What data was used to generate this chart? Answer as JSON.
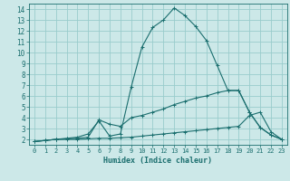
{
  "title": "",
  "xlabel": "Humidex (Indice chaleur)",
  "bg_color": "#cce8e8",
  "grid_color": "#99cccc",
  "line_color": "#1a6e6e",
  "xlim": [
    -0.5,
    23.5
  ],
  "ylim": [
    1.5,
    14.5
  ],
  "xticks": [
    0,
    1,
    2,
    3,
    4,
    5,
    6,
    7,
    8,
    9,
    10,
    11,
    12,
    13,
    14,
    15,
    16,
    17,
    18,
    19,
    20,
    21,
    22,
    23
  ],
  "yticks": [
    2,
    3,
    4,
    5,
    6,
    7,
    8,
    9,
    10,
    11,
    12,
    13,
    14
  ],
  "line1_x": [
    0,
    1,
    2,
    3,
    4,
    5,
    6,
    7,
    8,
    9,
    10,
    11,
    12,
    13,
    14,
    15,
    16,
    17,
    18,
    19,
    20,
    21,
    22,
    23
  ],
  "line1_y": [
    1.8,
    1.9,
    2.0,
    2.05,
    2.1,
    2.2,
    3.8,
    3.4,
    3.2,
    4.0,
    4.2,
    4.5,
    4.8,
    5.2,
    5.5,
    5.8,
    6.0,
    6.3,
    6.5,
    6.5,
    4.5,
    3.1,
    2.4,
    2.0
  ],
  "line2_x": [
    0,
    1,
    2,
    3,
    4,
    5,
    6,
    7,
    8,
    9,
    10,
    11,
    12,
    13,
    14,
    15,
    16,
    17,
    18,
    19,
    20,
    21,
    22,
    23
  ],
  "line2_y": [
    1.8,
    1.9,
    2.0,
    2.0,
    2.0,
    2.05,
    2.1,
    2.1,
    2.15,
    2.2,
    2.3,
    2.4,
    2.5,
    2.6,
    2.7,
    2.8,
    2.9,
    3.0,
    3.1,
    3.2,
    4.2,
    4.5,
    2.7,
    2.0
  ],
  "line3_x": [
    0,
    1,
    2,
    3,
    4,
    5,
    6,
    7,
    8,
    9,
    10,
    11,
    12,
    13,
    14,
    15,
    16,
    17,
    18,
    19,
    20,
    21,
    22,
    23
  ],
  "line3_y": [
    1.8,
    1.9,
    2.0,
    2.1,
    2.2,
    2.5,
    3.7,
    2.3,
    2.5,
    6.8,
    10.5,
    12.3,
    13.0,
    14.1,
    13.4,
    12.4,
    11.1,
    8.8,
    6.5,
    6.5,
    4.5,
    3.1,
    2.4,
    2.0
  ]
}
